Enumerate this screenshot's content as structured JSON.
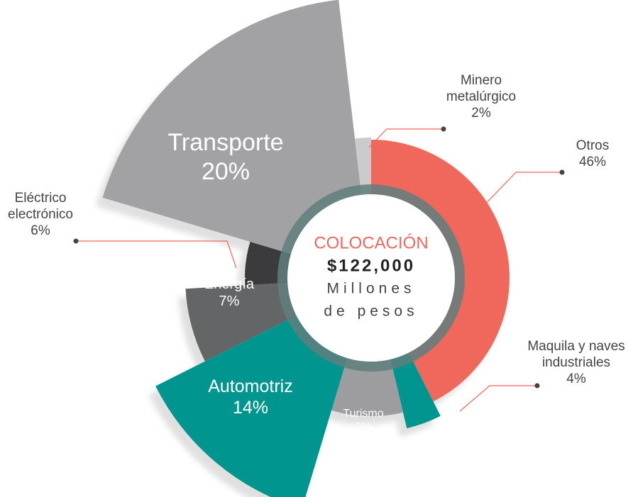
{
  "chart_data": {
    "type": "rose",
    "categories": [
      "Otros",
      "Maquila y naves industriales",
      "Turismo",
      "Automotriz",
      "Energía",
      "Eléctrico electrónico",
      "Transporte",
      "Minero metalúrgico"
    ],
    "values": [
      46,
      4,
      9,
      14,
      7,
      6,
      20,
      2
    ],
    "value_labels": [
      "46%",
      "4%",
      "9%",
      "14%",
      "7%",
      "6%",
      "20%",
      "2%"
    ],
    "colors": [
      "#f0675c",
      "#00968f",
      "#9d9d9f",
      "#00968f",
      "#646567",
      "#3b3b3d",
      "#a2a2a4",
      "#cbcbcd"
    ],
    "center_title": "COLOCACIÓN",
    "center_value": "$122,000",
    "center_unit": "Millones de pesos"
  }
}
